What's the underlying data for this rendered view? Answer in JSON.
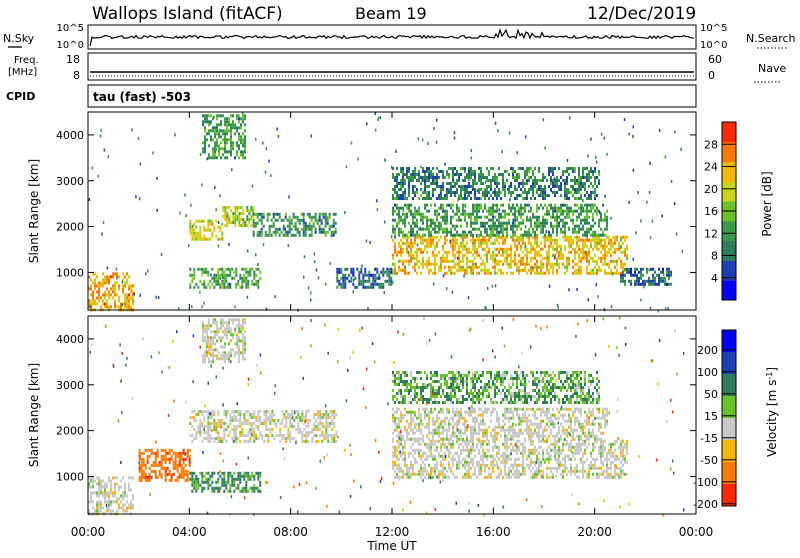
{
  "header": {
    "station": "Wallops Island (fitACF)",
    "beam": "Beam 19",
    "date": "12/Dec/2019"
  },
  "strips": {
    "nsky_label": "N.Sky",
    "nsearch_label": "N.Search",
    "nsky_ticks": [
      "10^5",
      "10^0"
    ],
    "nsearch_ticks": [
      "10^5",
      "10^0"
    ],
    "freq_label_1": "Freq.",
    "freq_label_2": "[MHz]",
    "freq_ticks": [
      "18",
      "8"
    ],
    "nave_label": "Nave",
    "nave_ticks": [
      "60",
      "0"
    ],
    "cpid_label": "CPID",
    "cpid_value": "tau (fast) -503"
  },
  "colors": {
    "power": [
      "#0000ff",
      "#1f3fb5",
      "#2e7d5b",
      "#3a9a4a",
      "#6bc12a",
      "#c9d418",
      "#f5b800",
      "#ff7a00",
      "#ff2a00"
    ],
    "velocity": [
      "#0000ff",
      "#1f3fb5",
      "#2e7d5b",
      "#6bc12a",
      "#c8c8c8",
      "#f5b800",
      "#ff7a00",
      "#ff2a00"
    ],
    "ground_scatter": "#c8c8c8"
  },
  "chart_data": [
    {
      "type": "heatmap",
      "name": "power",
      "title": "",
      "xlabel": "",
      "ylabel": "Slant Range [km]",
      "colorbar_label": "Power [dB]",
      "colorbar_ticks": [
        "4",
        "8",
        "12",
        "16",
        "20",
        "24",
        "28"
      ],
      "colorbar_range": [
        0,
        32
      ],
      "xlim": [
        0,
        24
      ],
      "ylim": [
        180,
        4500
      ],
      "y_ticks": [
        "1000",
        "2000",
        "3000",
        "4000"
      ],
      "y_tick_values": [
        1000,
        2000,
        3000,
        4000
      ],
      "regions": [
        {
          "t0": 0.0,
          "t1": 1.8,
          "r0": 200,
          "r1": 1000,
          "level": 24
        },
        {
          "t0": 4.0,
          "t1": 5.3,
          "r0": 1750,
          "r1": 2150,
          "level": 20
        },
        {
          "t0": 5.3,
          "t1": 6.5,
          "r0": 2050,
          "r1": 2450,
          "level": 18
        },
        {
          "t0": 6.5,
          "t1": 9.8,
          "r0": 1800,
          "r1": 2300,
          "level": 11
        },
        {
          "t0": 4.0,
          "t1": 6.8,
          "r0": 650,
          "r1": 1100,
          "level": 13
        },
        {
          "t0": 4.5,
          "t1": 6.2,
          "r0": 3500,
          "r1": 4450,
          "level": 12
        },
        {
          "t0": 12.0,
          "t1": 21.3,
          "r0": 950,
          "r1": 1800,
          "level": 22
        },
        {
          "t0": 12.0,
          "t1": 20.5,
          "r0": 1800,
          "r1": 2500,
          "level": 12
        },
        {
          "t0": 12.0,
          "t1": 20.2,
          "r0": 2600,
          "r1": 3300,
          "level": 10
        },
        {
          "t0": 21.0,
          "t1": 23.0,
          "r0": 750,
          "r1": 1100,
          "level": 8
        },
        {
          "t0": 9.8,
          "t1": 12.0,
          "r0": 700,
          "r1": 1100,
          "level": 8
        }
      ]
    },
    {
      "type": "heatmap",
      "name": "velocity",
      "title": "",
      "xlabel": "Time UT",
      "ylabel": "Slant Range [km]",
      "colorbar_label": "Velocity [m s^-1]",
      "colorbar_ticks": [
        "200",
        "100",
        "50",
        "15",
        "-15",
        "-50",
        "-100",
        "-200"
      ],
      "colorbar_values": [
        200,
        100,
        50,
        15,
        -15,
        -50,
        -100,
        -200
      ],
      "xlim": [
        0,
        24
      ],
      "ylim": [
        180,
        4500
      ],
      "x_ticks": [
        "00:00",
        "04:00",
        "08:00",
        "12:00",
        "16:00",
        "20:00",
        "00:00"
      ],
      "x_tick_values": [
        0,
        4,
        8,
        12,
        16,
        20,
        24
      ],
      "y_ticks": [
        "1000",
        "2000",
        "3000",
        "4000"
      ],
      "y_tick_values": [
        1000,
        2000,
        3000,
        4000
      ],
      "regions": [
        {
          "t0": 0.0,
          "t1": 1.8,
          "r0": 200,
          "r1": 1000,
          "velocity": 0
        },
        {
          "t0": 4.0,
          "t1": 9.8,
          "r0": 1750,
          "r1": 2450,
          "velocity": 0
        },
        {
          "t0": 4.0,
          "t1": 6.8,
          "r0": 650,
          "r1": 1100,
          "velocity": 40
        },
        {
          "t0": 4.5,
          "t1": 6.2,
          "r0": 3500,
          "r1": 4450,
          "velocity": 0
        },
        {
          "t0": 12.0,
          "t1": 21.3,
          "r0": 950,
          "r1": 1800,
          "velocity": 0
        },
        {
          "t0": 12.0,
          "t1": 20.5,
          "r0": 1800,
          "r1": 2500,
          "velocity": 0
        },
        {
          "t0": 12.0,
          "t1": 20.2,
          "r0": 2600,
          "r1": 3300,
          "velocity": 30
        },
        {
          "t0": 2.0,
          "t1": 4.0,
          "r0": 900,
          "r1": 1600,
          "velocity": -60
        }
      ]
    }
  ]
}
